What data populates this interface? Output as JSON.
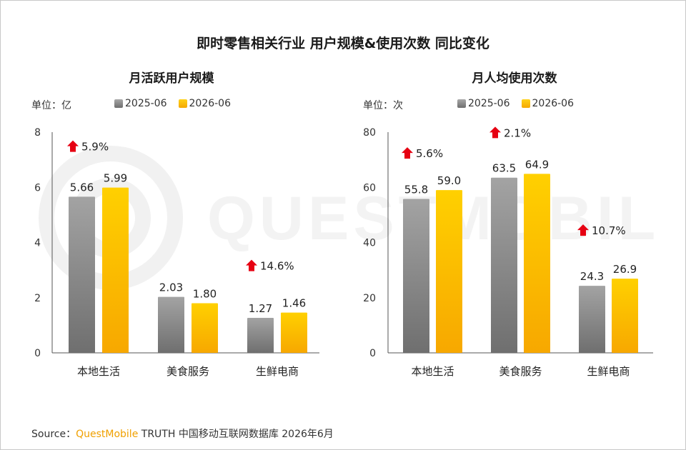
{
  "title": "即时零售相关行业 用户规模&使用次数 同比变化",
  "watermark_text": "QUESTMOBILE",
  "source": {
    "prefix": "Source：",
    "brand": "QuestMobile",
    "suffix": " TRUTH 中国移动互联网数据库 2026年6月"
  },
  "colors": {
    "series_2025": "#8a8a8a",
    "series_2026": "#fdbd00",
    "arrow": "#e60012"
  },
  "chart_data": [
    {
      "type": "bar",
      "title": "月活跃用户规模",
      "unit_label": "单位：亿",
      "categories": [
        "本地生活",
        "美食服务",
        "生鲜电商"
      ],
      "series": [
        {
          "name": "2025-06",
          "values": [
            5.66,
            2.03,
            1.27
          ],
          "labels": [
            "5.66",
            "2.03",
            "1.27"
          ]
        },
        {
          "name": "2026-06",
          "values": [
            5.99,
            1.8,
            1.46
          ],
          "labels": [
            "5.99",
            "1.80",
            "1.46"
          ]
        }
      ],
      "yoy_growth": [
        "5.9%",
        null,
        "14.6%"
      ],
      "yticks": [
        "0",
        "2",
        "4",
        "6",
        "8"
      ],
      "ylim": [
        0,
        8
      ],
      "legend_position": "top",
      "grid": false
    },
    {
      "type": "bar",
      "title": "月人均使用次数",
      "unit_label": "单位：次",
      "categories": [
        "本地生活",
        "美食服务",
        "生鲜电商"
      ],
      "series": [
        {
          "name": "2025-06",
          "values": [
            55.8,
            63.5,
            24.3
          ],
          "labels": [
            "55.8",
            "63.5",
            "24.3"
          ]
        },
        {
          "name": "2026-06",
          "values": [
            59.0,
            64.9,
            26.9
          ],
          "labels": [
            "59.0",
            "64.9",
            "26.9"
          ]
        }
      ],
      "yoy_growth": [
        "5.6%",
        "2.1%",
        "10.7%"
      ],
      "yticks": [
        "0",
        "20",
        "40",
        "60",
        "80"
      ],
      "ylim": [
        0,
        80
      ],
      "legend_position": "top",
      "grid": false
    }
  ]
}
